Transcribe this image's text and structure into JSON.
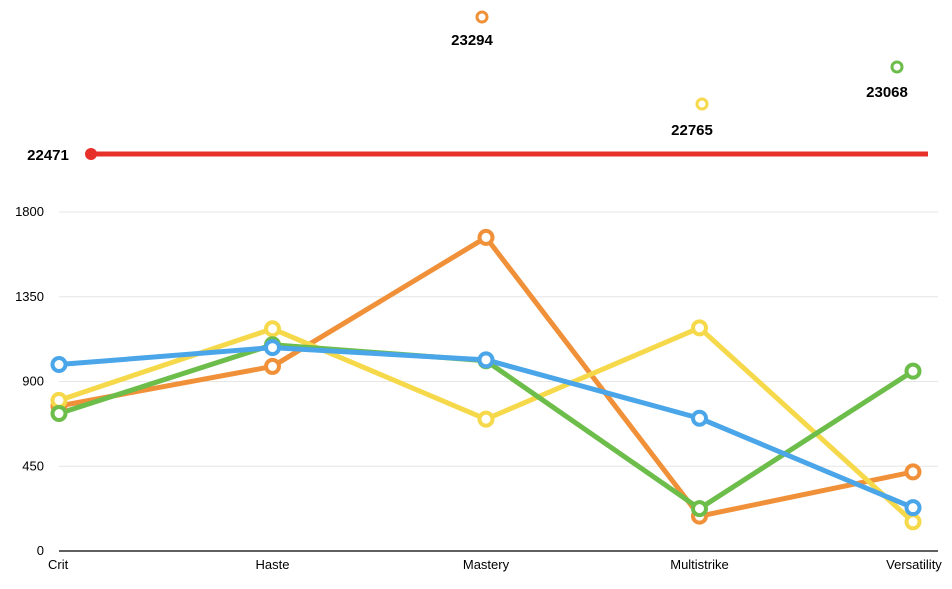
{
  "chart_data": {
    "type": "line",
    "categories": [
      "Crit",
      "Haste",
      "Mastery",
      "Multistrike",
      "Versatility"
    ],
    "ylim": [
      0,
      1800
    ],
    "yticks": [
      0,
      450,
      900,
      1350,
      1800
    ],
    "grid": true,
    "series": [
      {
        "color": "#f0913a",
        "values": [
          770,
          980,
          1665,
          185,
          420
        ]
      },
      {
        "color": "#f6d94a",
        "values": [
          800,
          1180,
          700,
          1185,
          155
        ]
      },
      {
        "color": "#6cbd4a",
        "values": [
          730,
          1095,
          1010,
          225,
          955
        ]
      },
      {
        "color": "#4aa6e8",
        "values": [
          990,
          1080,
          1015,
          705,
          230
        ]
      }
    ],
    "baseline": {
      "label": "22471",
      "color": "#e8302b"
    },
    "totals": [
      {
        "label": "23294",
        "color": "#f0913a"
      },
      {
        "label": "22765",
        "color": "#f6d94a"
      },
      {
        "label": "23068",
        "color": "#6cbd4a"
      }
    ]
  }
}
